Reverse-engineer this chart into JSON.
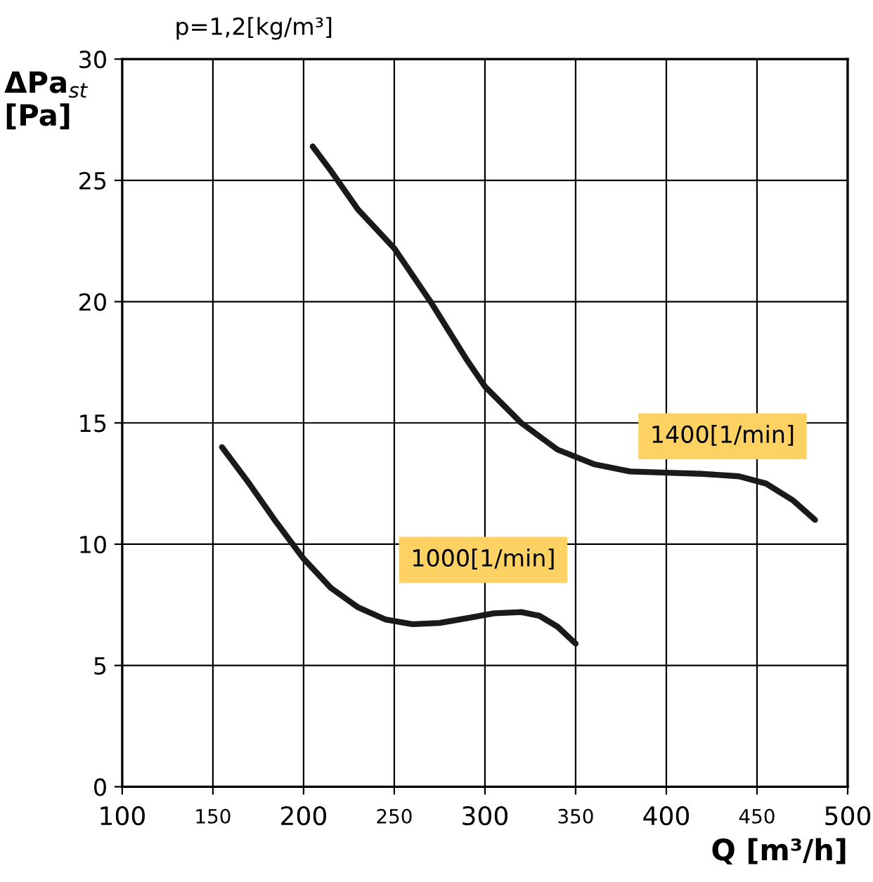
{
  "chart_data": {
    "type": "line",
    "xlabel": "Q [m³/h]",
    "ylabel": "ΔPa$_{st}$\n[Pa]",
    "annotations": [
      "p=1,2[kg/m³]"
    ],
    "series": [
      {
        "name": "1400[1/min]",
        "color": "#1a1a1a",
        "x": [
          205,
          215,
          230,
          250,
          270,
          290,
          300,
          320,
          340,
          360,
          380,
          400,
          420,
          440,
          455,
          470,
          482
        ],
        "values": [
          26.4,
          25.4,
          23.8,
          22.2,
          20.0,
          17.6,
          16.5,
          15.0,
          13.9,
          13.3,
          13.0,
          12.95,
          12.9,
          12.8,
          12.5,
          11.8,
          11.0
        ]
      },
      {
        "name": "1000[1/min]",
        "color": "#1a1a1a",
        "x": [
          155,
          170,
          185,
          200,
          215,
          230,
          245,
          260,
          275,
          290,
          305,
          320,
          330,
          340,
          350
        ],
        "values": [
          14.0,
          12.5,
          10.9,
          9.4,
          8.2,
          7.4,
          6.9,
          6.7,
          6.75,
          6.95,
          7.15,
          7.2,
          7.05,
          6.6,
          5.9
        ]
      }
    ],
    "xlim": [
      100,
      500
    ],
    "ylim": [
      0,
      30
    ],
    "xticks": [
      100,
      {
        "value": 150,
        "label": "150"
      },
      200,
      {
        "value": 250,
        "label": "250"
      },
      300,
      {
        "value": 350,
        "label": "350"
      },
      400,
      {
        "value": 450,
        "label": "450"
      },
      500
    ],
    "yticks": [
      0,
      5,
      10,
      15,
      20,
      25,
      30
    ],
    "grid": true,
    "line_style": "solid",
    "marker": "none"
  }
}
